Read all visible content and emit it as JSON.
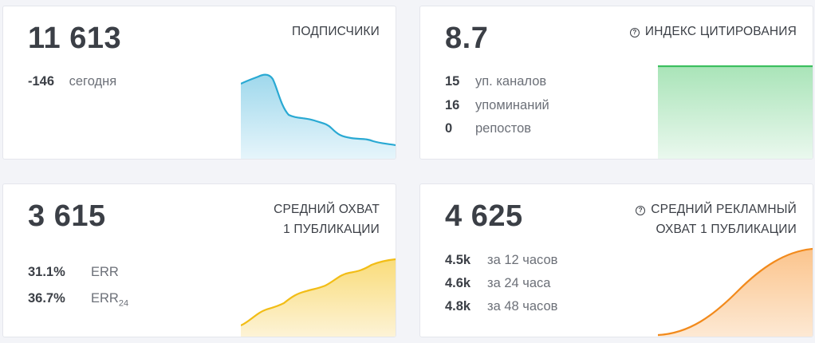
{
  "subscribers": {
    "value": "11 613",
    "title": "ПОДПИСЧИКИ",
    "delta": "-146",
    "delta_label": "сегодня",
    "sparkline_color": "#29a9d3"
  },
  "citation": {
    "value": "8.7",
    "icon": "question-circle-icon",
    "title": "ИНДЕКС ЦИТИРОВАНИЯ",
    "rows": [
      {
        "value": "15",
        "label": "уп. каналов"
      },
      {
        "value": "16",
        "label": "упоминаний"
      },
      {
        "value": "0",
        "label": "репостов"
      }
    ],
    "sparkline_color": "#3cbf5f"
  },
  "reach": {
    "value": "3 615",
    "title_line1": "СРЕДНИЙ ОХВАТ",
    "title_line2": "1 ПУБЛИКАЦИИ",
    "rows": [
      {
        "value": "31.1%",
        "label": "ERR",
        "sub": ""
      },
      {
        "value": "36.7%",
        "label": "ERR",
        "sub": "24"
      }
    ],
    "sparkline_color": "#f2bd16"
  },
  "ad_reach": {
    "value": "4 625",
    "icon": "question-circle-icon",
    "title_line1": "СРЕДНИЙ РЕКЛАМНЫЙ",
    "title_line2": "ОХВАТ 1 ПУБЛИКАЦИИ",
    "rows": [
      {
        "value": "4.5k",
        "label": "за 12 часов"
      },
      {
        "value": "4.6k",
        "label": "за 24 часа"
      },
      {
        "value": "4.8k",
        "label": "за 48 часов"
      }
    ],
    "sparkline_color": "#f28a1c"
  }
}
